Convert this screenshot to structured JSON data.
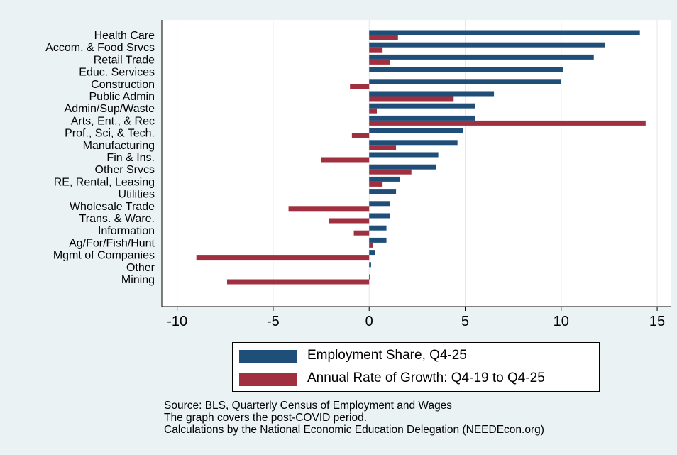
{
  "chart_data": {
    "type": "bar",
    "orientation": "horizontal",
    "categories": [
      "Health Care",
      "Accom. & Food Srvcs",
      "Retail Trade",
      "Educ. Services",
      "Construction",
      "Public Admin",
      "Admin/Sup/Waste",
      "Arts, Ent., & Rec",
      "Prof., Sci, & Tech.",
      "Manufacturing",
      "Fin & Ins.",
      "Other Srvcs",
      "RE, Rental, Leasing",
      "Utilities",
      "Wholesale Trade",
      "Trans. & Ware.",
      "Information",
      "Ag/For/Fish/Hunt",
      "Mgmt of Companies",
      "Other",
      "Mining"
    ],
    "series": [
      {
        "name": "Employment Share, Q4-25",
        "color": "#1f4e79",
        "values": [
          14.1,
          12.3,
          11.7,
          10.1,
          10.0,
          6.5,
          5.5,
          5.5,
          4.9,
          4.6,
          3.6,
          3.5,
          1.6,
          1.4,
          1.1,
          1.1,
          0.9,
          0.9,
          0.3,
          0.1,
          0.05
        ]
      },
      {
        "name": "Annual Rate of Growth: Q4-19 to Q4-25",
        "color": "#a03040",
        "values": [
          1.5,
          0.7,
          1.1,
          0.0,
          -1.0,
          4.4,
          0.4,
          14.4,
          -0.9,
          1.4,
          -2.5,
          2.2,
          0.7,
          0.0,
          -4.2,
          -2.1,
          -0.8,
          0.2,
          -9.0,
          0.0,
          -7.4
        ]
      }
    ],
    "x_ticks": [
      -10,
      -5,
      0,
      5,
      10,
      15
    ],
    "x_tick_labels": [
      "-10",
      "-5",
      "0",
      "5",
      "10",
      "15"
    ],
    "xlim": [
      -10.8,
      15.7
    ],
    "grid": "vertical",
    "legend_position": "bottom"
  },
  "legend": {
    "items": [
      {
        "label": "Employment Share, Q4-25",
        "color": "#1f4e79"
      },
      {
        "label": "Annual Rate of Growth: Q4-19 to Q4-25",
        "color": "#a03040"
      }
    ]
  },
  "source": {
    "line1": "Source: BLS, Quarterly Census of Employment and Wages",
    "line2": "The graph covers the post-COVID period.",
    "line3": "Calculations by the National Economic Education Delegation (NEEDEcon.org)"
  }
}
